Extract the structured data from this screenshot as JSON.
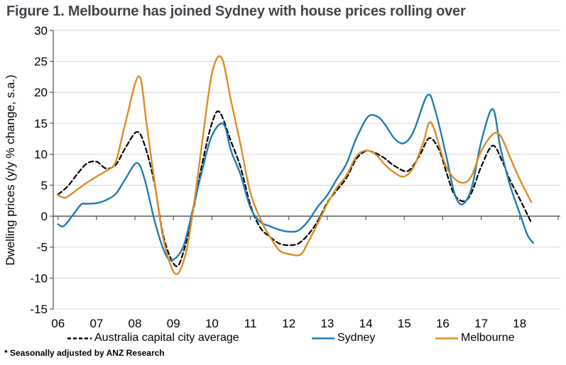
{
  "title": "Figure 1. Melbourne has joined Sydney with house prices rolling over",
  "footnote": "* Seasonally adjusted by ANZ Research",
  "chart_data": {
    "type": "line",
    "title": "Figure 1. Melbourne has joined Sydney with house prices rolling over",
    "xlabel": "",
    "ylabel": "Dwelling prices (y/y % change, s.a.)",
    "ylim": [
      -15,
      30
    ],
    "xlim": [
      2005.9,
      2019.0
    ],
    "grid": true,
    "legend_position": "bottom",
    "y_ticks": [
      30,
      25,
      20,
      15,
      10,
      5,
      0,
      -5,
      -10,
      -15
    ],
    "x_tick_labels": [
      "06",
      "07",
      "08",
      "09",
      "10",
      "11",
      "12",
      "13",
      "14",
      "15",
      "16",
      "17",
      "18"
    ],
    "colors": {
      "grid": "#d9d9d9",
      "axis": "#595959",
      "australia_average": "#000000",
      "sydney": "#1f7cb4",
      "melbourne": "#dd8c23"
    },
    "series": [
      {
        "name": "Australia capital city average",
        "color": "#000000",
        "style": "dashed",
        "points": [
          [
            2006.0,
            3.5
          ],
          [
            2006.25,
            4.8
          ],
          [
            2006.5,
            6.8
          ],
          [
            2006.75,
            8.5
          ],
          [
            2007.0,
            8.8
          ],
          [
            2007.25,
            7.7
          ],
          [
            2007.5,
            8.3
          ],
          [
            2007.75,
            11.0
          ],
          [
            2008.05,
            13.6
          ],
          [
            2008.25,
            11.5
          ],
          [
            2008.5,
            5.5
          ],
          [
            2008.75,
            -3.5
          ],
          [
            2009.05,
            -8.0
          ],
          [
            2009.25,
            -6.0
          ],
          [
            2009.5,
            0.5
          ],
          [
            2009.75,
            8.5
          ],
          [
            2010.0,
            15.0
          ],
          [
            2010.2,
            16.8
          ],
          [
            2010.5,
            12.0
          ],
          [
            2010.75,
            7.8
          ],
          [
            2011.0,
            1.8
          ],
          [
            2011.25,
            -1.8
          ],
          [
            2011.5,
            -3.3
          ],
          [
            2011.75,
            -4.4
          ],
          [
            2012.0,
            -4.7
          ],
          [
            2012.25,
            -4.4
          ],
          [
            2012.5,
            -3.0
          ],
          [
            2012.75,
            -0.8
          ],
          [
            2013.0,
            2.2
          ],
          [
            2013.25,
            4.2
          ],
          [
            2013.5,
            6.2
          ],
          [
            2013.75,
            9.2
          ],
          [
            2014.0,
            10.5
          ],
          [
            2014.25,
            10.2
          ],
          [
            2014.5,
            9.3
          ],
          [
            2014.75,
            8.1
          ],
          [
            2015.1,
            7.3
          ],
          [
            2015.4,
            9.8
          ],
          [
            2015.65,
            12.6
          ],
          [
            2015.9,
            10.8
          ],
          [
            2016.1,
            7.0
          ],
          [
            2016.3,
            3.5
          ],
          [
            2016.55,
            2.4
          ],
          [
            2016.75,
            3.8
          ],
          [
            2017.0,
            8.0
          ],
          [
            2017.3,
            11.4
          ],
          [
            2017.55,
            8.8
          ],
          [
            2017.75,
            5.8
          ],
          [
            2018.0,
            2.8
          ],
          [
            2018.3,
            -1.0
          ]
        ]
      },
      {
        "name": "Sydney",
        "color": "#1f7cb4",
        "style": "solid",
        "points": [
          [
            2006.0,
            -1.3
          ],
          [
            2006.15,
            -1.6
          ],
          [
            2006.4,
            0.3
          ],
          [
            2006.6,
            1.9
          ],
          [
            2006.75,
            2.0
          ],
          [
            2007.0,
            2.1
          ],
          [
            2007.25,
            2.6
          ],
          [
            2007.5,
            3.6
          ],
          [
            2007.75,
            6.0
          ],
          [
            2008.05,
            8.6
          ],
          [
            2008.25,
            6.0
          ],
          [
            2008.5,
            -0.5
          ],
          [
            2008.75,
            -5.5
          ],
          [
            2008.95,
            -7.1
          ],
          [
            2009.25,
            -5.0
          ],
          [
            2009.5,
            1.0
          ],
          [
            2009.75,
            7.5
          ],
          [
            2010.0,
            13.0
          ],
          [
            2010.3,
            14.9
          ],
          [
            2010.5,
            10.5
          ],
          [
            2010.75,
            6.6
          ],
          [
            2011.0,
            1.4
          ],
          [
            2011.25,
            -0.9
          ],
          [
            2011.5,
            -1.6
          ],
          [
            2011.75,
            -2.2
          ],
          [
            2012.0,
            -2.5
          ],
          [
            2012.25,
            -2.3
          ],
          [
            2012.5,
            -0.8
          ],
          [
            2012.75,
            1.5
          ],
          [
            2013.0,
            3.4
          ],
          [
            2013.25,
            6.0
          ],
          [
            2013.5,
            8.5
          ],
          [
            2013.75,
            12.5
          ],
          [
            2014.05,
            16.0
          ],
          [
            2014.3,
            16.1
          ],
          [
            2014.5,
            14.8
          ],
          [
            2014.75,
            12.5
          ],
          [
            2015.0,
            11.8
          ],
          [
            2015.25,
            13.8
          ],
          [
            2015.6,
            19.5
          ],
          [
            2015.8,
            17.2
          ],
          [
            2016.1,
            9.5
          ],
          [
            2016.3,
            3.8
          ],
          [
            2016.5,
            1.9
          ],
          [
            2016.75,
            4.5
          ],
          [
            2017.0,
            12.0
          ],
          [
            2017.3,
            17.3
          ],
          [
            2017.5,
            11.0
          ],
          [
            2017.75,
            5.0
          ],
          [
            2018.0,
            0.5
          ],
          [
            2018.2,
            -3.0
          ],
          [
            2018.35,
            -4.3
          ]
        ]
      },
      {
        "name": "Melbourne",
        "color": "#dd8c23",
        "style": "solid",
        "points": [
          [
            2006.0,
            3.4
          ],
          [
            2006.2,
            3.0
          ],
          [
            2006.5,
            4.3
          ],
          [
            2006.75,
            5.4
          ],
          [
            2007.0,
            6.4
          ],
          [
            2007.25,
            7.3
          ],
          [
            2007.5,
            8.8
          ],
          [
            2007.75,
            15.0
          ],
          [
            2008.1,
            22.6
          ],
          [
            2008.3,
            15.0
          ],
          [
            2008.5,
            6.0
          ],
          [
            2008.75,
            -4.0
          ],
          [
            2009.05,
            -9.3
          ],
          [
            2009.3,
            -6.5
          ],
          [
            2009.5,
            0.5
          ],
          [
            2009.75,
            12.0
          ],
          [
            2010.0,
            23.0
          ],
          [
            2010.25,
            25.6
          ],
          [
            2010.5,
            18.5
          ],
          [
            2010.75,
            11.4
          ],
          [
            2011.0,
            3.8
          ],
          [
            2011.3,
            -1.0
          ],
          [
            2011.5,
            -3.2
          ],
          [
            2011.75,
            -5.5
          ],
          [
            2012.0,
            -6.1
          ],
          [
            2012.3,
            -6.2
          ],
          [
            2012.5,
            -4.2
          ],
          [
            2012.75,
            -1.2
          ],
          [
            2013.0,
            2.0
          ],
          [
            2013.25,
            4.6
          ],
          [
            2013.5,
            6.6
          ],
          [
            2013.75,
            9.6
          ],
          [
            2014.0,
            10.6
          ],
          [
            2014.25,
            10.0
          ],
          [
            2014.5,
            8.3
          ],
          [
            2014.75,
            7.0
          ],
          [
            2015.0,
            6.4
          ],
          [
            2015.25,
            8.0
          ],
          [
            2015.5,
            12.0
          ],
          [
            2015.7,
            15.1
          ],
          [
            2016.05,
            8.6
          ],
          [
            2016.3,
            6.1
          ],
          [
            2016.55,
            5.4
          ],
          [
            2016.75,
            6.5
          ],
          [
            2017.0,
            10.5
          ],
          [
            2017.3,
            13.2
          ],
          [
            2017.5,
            13.0
          ],
          [
            2017.75,
            9.5
          ],
          [
            2018.0,
            6.0
          ],
          [
            2018.3,
            2.3
          ]
        ]
      }
    ]
  }
}
